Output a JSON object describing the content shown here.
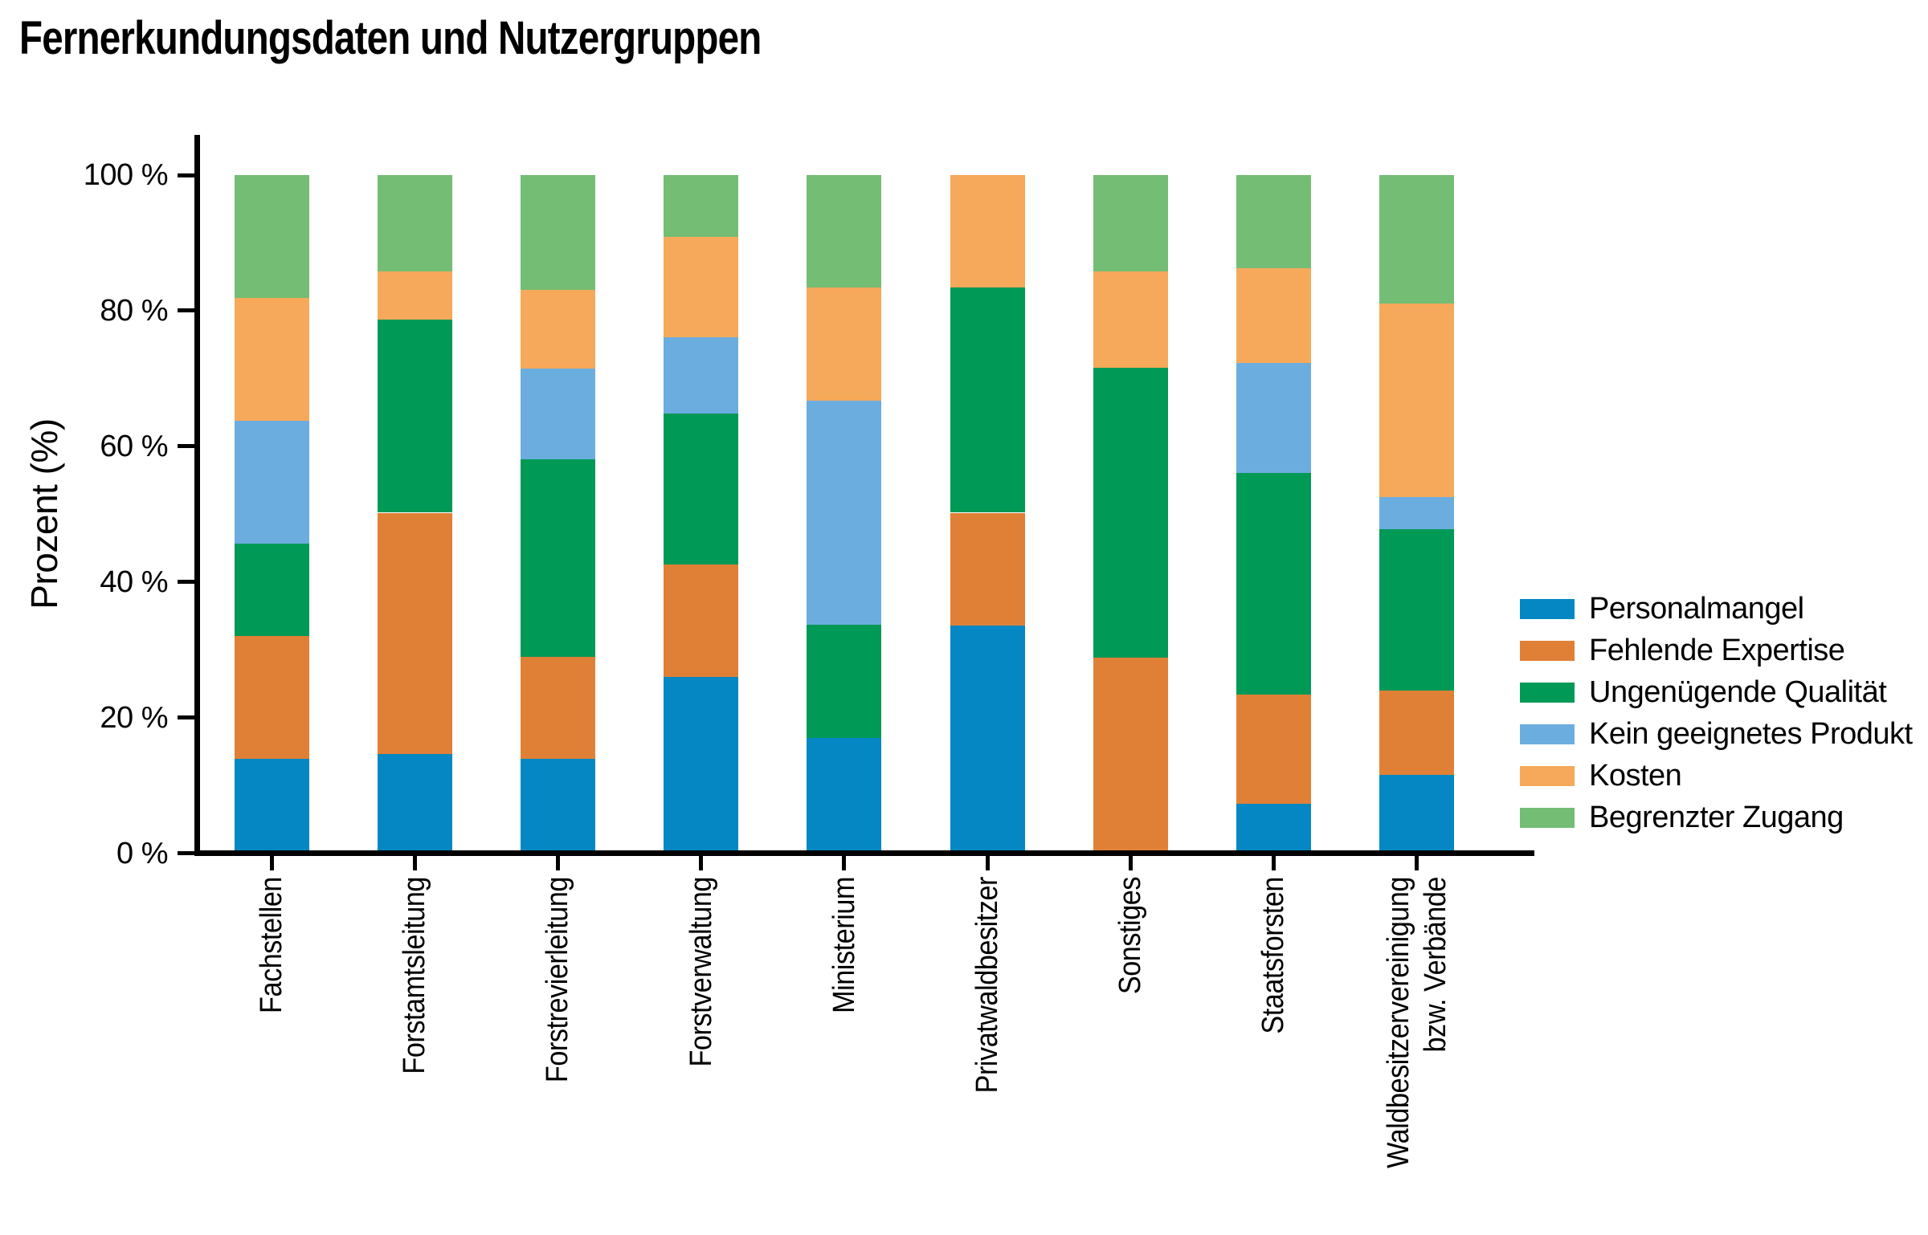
{
  "chart_data": {
    "type": "bar",
    "stacked": true,
    "percent_stacked": true,
    "title": "Fernerkundungsdaten und Nutzergruppen",
    "y_axis": {
      "label": "Prozent (%)",
      "range": [
        0,
        100
      ],
      "ticks": [
        {
          "value": 0,
          "label": "0 %"
        },
        {
          "value": 20,
          "label": "20 %"
        },
        {
          "value": 40,
          "label": "40 %"
        },
        {
          "value": 60,
          "label": "60 %"
        },
        {
          "value": 80,
          "label": "80 %"
        },
        {
          "value": 100,
          "label": "100 %"
        }
      ]
    },
    "grid": false,
    "legend_position": "right",
    "background": "#ffffff",
    "axis_color": "#000000",
    "categories": [
      "Fachstellen",
      "Forstamtsleitung",
      "Forstrevierleitung",
      "Forstverwaltung",
      "Ministerium",
      "Privatwaldbesitzer",
      "Sonstiges",
      "Staatsforsten",
      "Waldbesitzervereinigung\nbzw. Verbände"
    ],
    "series": [
      {
        "name": "Personalmangel",
        "color": "#0487c2",
        "values": [
          13.6,
          14.3,
          13.5,
          25.7,
          16.7,
          33.3,
          0,
          6.9,
          11.2
        ]
      },
      {
        "name": "Fehlende Expertise",
        "color": "#e08036",
        "values": [
          18.2,
          35.7,
          15.2,
          16.6,
          0,
          16.7,
          28.6,
          16.2,
          12.5
        ]
      },
      {
        "name": "Ungenügende Qualität",
        "color": "#009956",
        "values": [
          13.6,
          28.6,
          29.2,
          22.4,
          16.7,
          33.3,
          42.9,
          32.8,
          23.9
        ]
      },
      {
        "name": "Kein geeignetes Produkt",
        "color": "#6caddf",
        "values": [
          18.2,
          0,
          13.4,
          11.3,
          33.3,
          0,
          0,
          16.3,
          4.7
        ]
      },
      {
        "name": "Kosten",
        "color": "#f6a95a",
        "values": [
          18.2,
          7.1,
          11.7,
          14.8,
          16.7,
          16.7,
          14.3,
          14.0,
          28.7
        ]
      },
      {
        "name": "Begrenzter Zugang",
        "color": "#74bd74",
        "values": [
          18.2,
          14.3,
          17.0,
          9.2,
          16.7,
          0,
          14.3,
          13.8,
          19.0
        ]
      }
    ]
  }
}
